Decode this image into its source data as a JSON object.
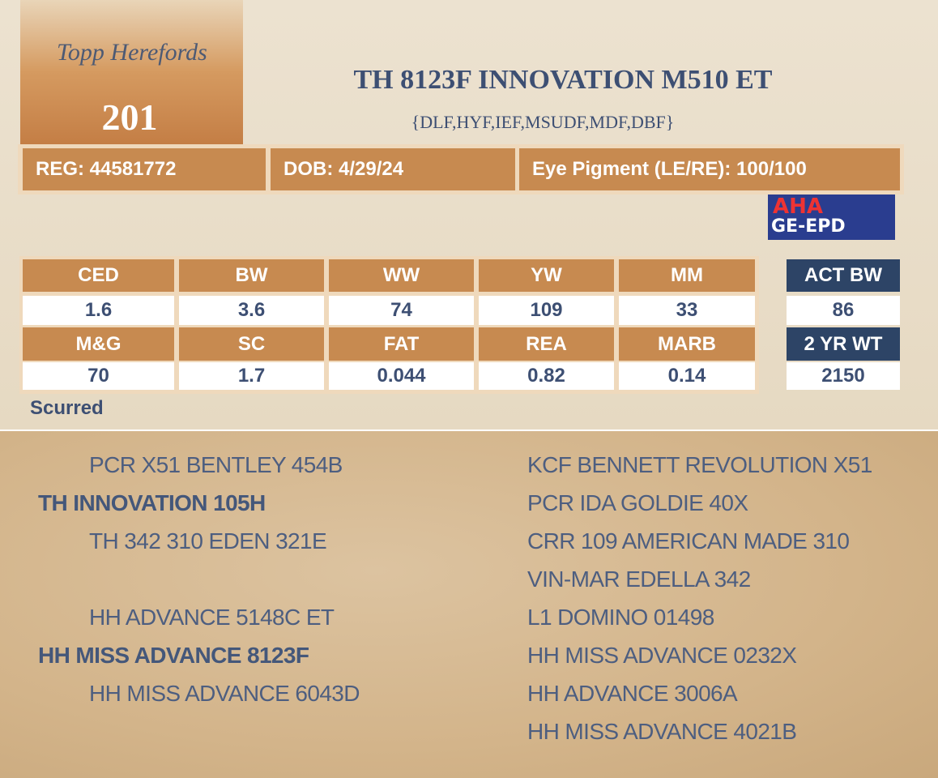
{
  "logo": "Topp Herefords",
  "lot": "201",
  "name": "TH 8123F INNOVATION M510 ET",
  "genetics": "{DLF,HYF,IEF,MSUDF,MDF,DBF}",
  "info": [
    "REG: 44581772",
    "DOB: 4/29/24",
    "Eye Pigment (LE/RE): 100/100"
  ],
  "badge": [
    "AHA",
    "GE-EPD"
  ],
  "epd": [
    {
      "headers": [
        "CED",
        "BW",
        "WW",
        "YW",
        "MM"
      ],
      "values": [
        "1.6",
        "3.6",
        "74",
        "109",
        "33"
      ]
    },
    {
      "headers": [
        "M&G",
        "SC",
        "FAT",
        "REA",
        "MARB"
      ],
      "values": [
        "70",
        "1.7",
        "0.044",
        "0.82",
        "0.14"
      ]
    }
  ],
  "extra": [
    {
      "header": "ACT BW",
      "value": "86"
    },
    {
      "header": "2 YR WT",
      "value": "2150"
    }
  ],
  "status": "Scurred",
  "pedigree": {
    "sire_side": {
      "sire": "PCR X51 BENTLEY 454B",
      "name": "TH INNOVATION 105H",
      "dam": "TH 342 310 EDEN 321E"
    },
    "dam_side": {
      "sire": "HH ADVANCE 5148C ET",
      "name": "HH MISS ADVANCE 8123F",
      "dam": "HH MISS ADVANCE 6043D"
    },
    "ancestors": [
      "KCF BENNETT REVOLUTION X51",
      "PCR IDA GOLDIE 40X",
      "CRR 109 AMERICAN MADE 310",
      "VIN-MAR EDELLA 342",
      "L1 DOMINO 01498",
      "HH MISS ADVANCE 0232X",
      "HH ADVANCE 3006A",
      "HH MISS ADVANCE 4021B"
    ]
  }
}
